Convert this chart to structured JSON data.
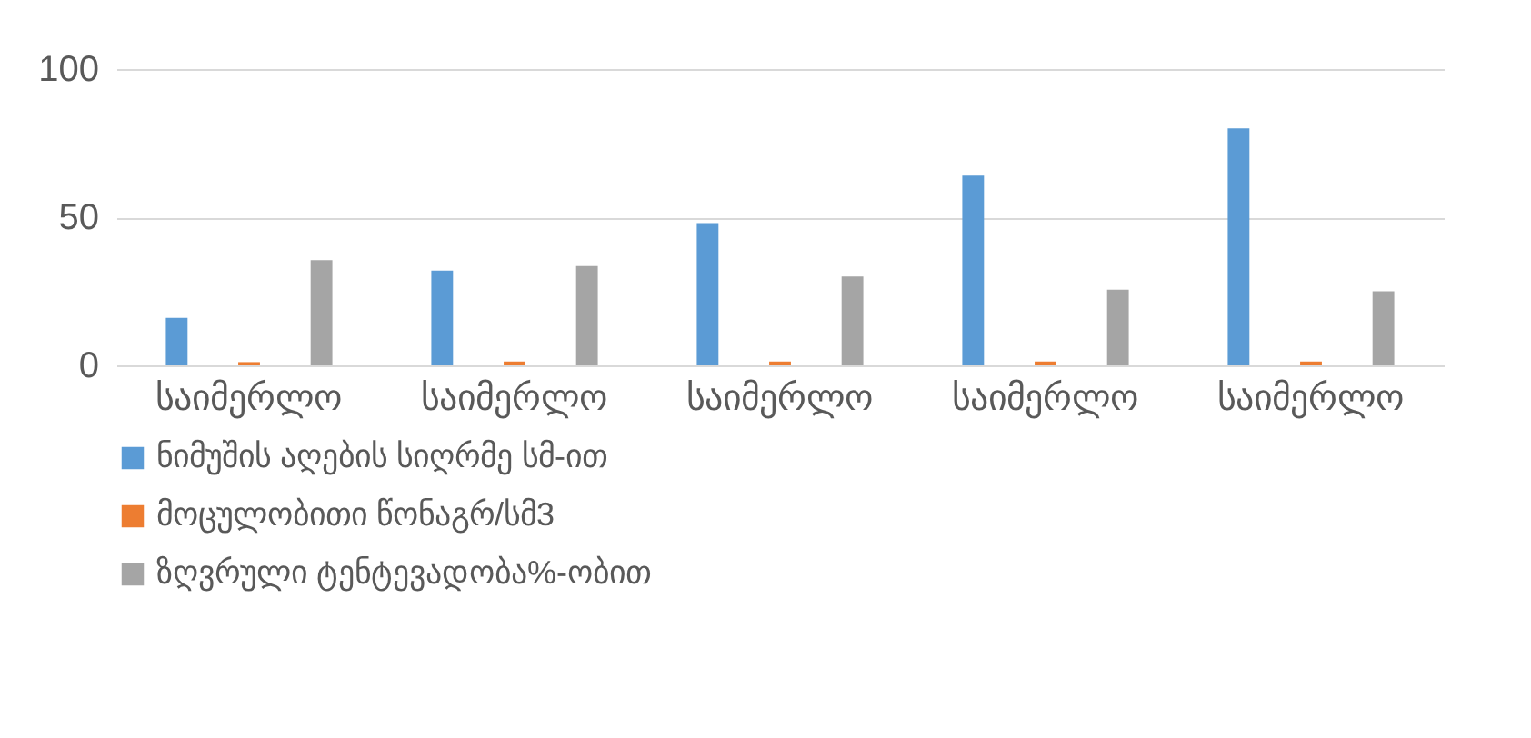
{
  "chart_data": {
    "type": "bar",
    "categories": [
      "საიმერლო",
      "საიმერლო",
      "საიმერლო",
      "საიმერლო",
      "საიმერლო"
    ],
    "series": [
      {
        "name": "ნიმუშის აღების სიღრმე სმ-ით",
        "color": "#5b9bd5",
        "values": [
          16,
          32,
          48,
          64,
          80
        ]
      },
      {
        "name": "მოცულობითი წონაგრ/სმ3",
        "color": "#ed7d31",
        "values": [
          1.1,
          1.3,
          1.3,
          1.3,
          1.3
        ]
      },
      {
        "name": "ზღვრული ტენტევადობა%-ობით",
        "color": "#a5a5a5",
        "values": [
          35.5,
          33.5,
          30,
          25.5,
          25
        ]
      }
    ],
    "ylim": [
      0,
      100
    ],
    "yticks": [
      0,
      50,
      100
    ],
    "grid": "y",
    "legend": "bottom"
  }
}
